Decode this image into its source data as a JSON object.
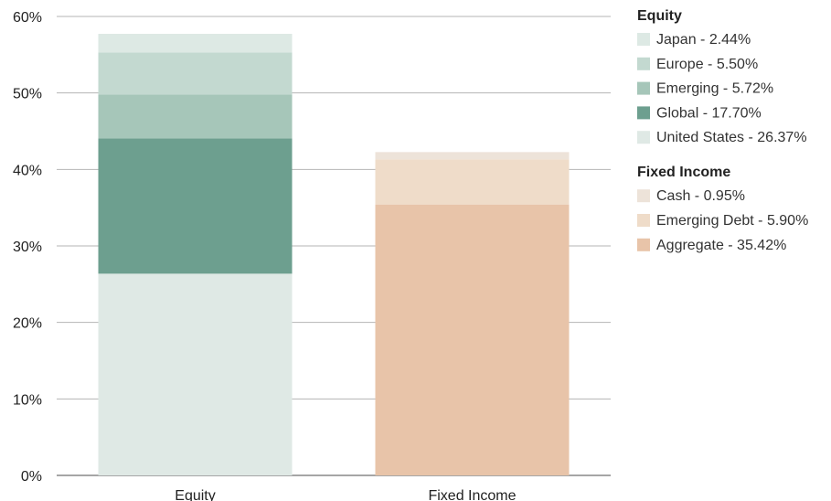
{
  "chart_data": {
    "type": "bar",
    "stacked": true,
    "categories": [
      "Equity",
      "Fixed Income"
    ],
    "y_ticks": [
      "0%",
      "10%",
      "20%",
      "30%",
      "40%",
      "50%",
      "60%"
    ],
    "ylim": [
      0,
      60
    ],
    "grid": true,
    "legend_placement": "right",
    "series": [
      {
        "name": "United States - 26.37%",
        "group": "Equity",
        "category": "Equity",
        "value": 26.37,
        "color": "#dfe9e5"
      },
      {
        "name": "Global - 17.70%",
        "group": "Equity",
        "category": "Equity",
        "value": 17.7,
        "color": "#6d9f8f"
      },
      {
        "name": "Emerging - 5.72%",
        "group": "Equity",
        "category": "Equity",
        "value": 5.72,
        "color": "#a6c6b9"
      },
      {
        "name": "Europe - 5.50%",
        "group": "Equity",
        "category": "Equity",
        "value": 5.5,
        "color": "#c3d9d0"
      },
      {
        "name": "Japan - 2.44%",
        "group": "Equity",
        "category": "Equity",
        "value": 2.44,
        "color": "#dde9e4"
      },
      {
        "name": "Aggregate - 35.42%",
        "group": "Fixed Income",
        "category": "Fixed Income",
        "value": 35.42,
        "color": "#e8c4a9"
      },
      {
        "name": "Emerging Debt - 5.90%",
        "group": "Fixed Income",
        "category": "Fixed Income",
        "value": 5.9,
        "color": "#efdcc9"
      },
      {
        "name": "Cash - 0.95%",
        "group": "Fixed Income",
        "category": "Fixed Income",
        "value": 0.95,
        "color": "#ede3d9"
      }
    ],
    "legend": [
      {
        "title": "Equity",
        "items": [
          "Japan - 2.44%",
          "Europe - 5.50%",
          "Emerging - 5.72%",
          "Global - 17.70%",
          "United States - 26.37%"
        ]
      },
      {
        "title": "Fixed Income",
        "items": [
          "Cash - 0.95%",
          "Emerging Debt - 5.90%",
          "Aggregate - 35.42%"
        ]
      }
    ]
  }
}
